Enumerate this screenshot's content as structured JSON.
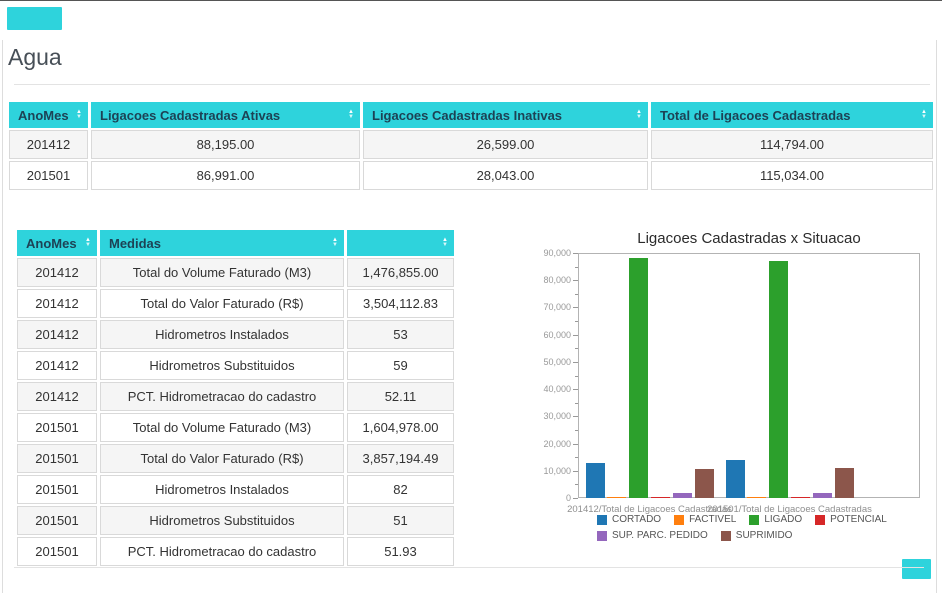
{
  "page": {
    "title": "Agua"
  },
  "accents": {
    "cyan": "#2ed3dc",
    "header_text": "#1d4255"
  },
  "table1": {
    "columns": [
      {
        "label": "AnoMes"
      },
      {
        "label": "Ligacoes Cadastradas Ativas"
      },
      {
        "label": "Ligacoes Cadastradas Inativas"
      },
      {
        "label": "Total de Ligacoes Cadastradas"
      }
    ],
    "rows": [
      [
        "201412",
        "88,195.00",
        "26,599.00",
        "114,794.00"
      ],
      [
        "201501",
        "86,991.00",
        "28,043.00",
        "115,034.00"
      ]
    ]
  },
  "table2": {
    "columns": [
      {
        "label": "AnoMes"
      },
      {
        "label": "Medidas"
      },
      {
        "label": ""
      }
    ],
    "rows": [
      [
        "201412",
        "Total do Volume Faturado (M3)",
        "1,476,855.00"
      ],
      [
        "201412",
        "Total do Valor Faturado (R$)",
        "3,504,112.83"
      ],
      [
        "201412",
        "Hidrometros Instalados",
        "53"
      ],
      [
        "201412",
        "Hidrometros Substituidos",
        "59"
      ],
      [
        "201412",
        "PCT. Hidrometracao do cadastro",
        "52.11"
      ],
      [
        "201501",
        "Total do Volume Faturado (M3)",
        "1,604,978.00"
      ],
      [
        "201501",
        "Total do Valor Faturado (R$)",
        "3,857,194.49"
      ],
      [
        "201501",
        "Hidrometros Instalados",
        "82"
      ],
      [
        "201501",
        "Hidrometros Substituidos",
        "51"
      ],
      [
        "201501",
        "PCT. Hidrometracao do cadastro",
        "51.93"
      ]
    ]
  },
  "chart_data": {
    "type": "bar",
    "title": "Ligacoes Cadastradas x Situacao",
    "categories": [
      "201412/Total de Ligacoes Cadastradas",
      "201501/Total de Ligacoes Cadastradas"
    ],
    "series": [
      {
        "name": "CORTADO",
        "color": "#1f77b4",
        "values": [
          12950,
          14100
        ]
      },
      {
        "name": "FACTIVEL",
        "color": "#ff7f0e",
        "values": [
          150,
          150
        ]
      },
      {
        "name": "LIGADO",
        "color": "#2ca02c",
        "values": [
          88195,
          86991
        ]
      },
      {
        "name": "POTENCIAL",
        "color": "#d62728",
        "values": [
          100,
          100
        ]
      },
      {
        "name": "SUP. PARC. PEDIDO",
        "color": "#9467bd",
        "values": [
          1700,
          1700
        ]
      },
      {
        "name": "SUPRIMIDO",
        "color": "#8c564b",
        "values": [
          10650,
          10900
        ]
      }
    ],
    "ylim": [
      0,
      90000
    ],
    "ytick_step": 10000,
    "legend_position": "bottom",
    "legend_rows": [
      4,
      2
    ],
    "grid": false
  }
}
